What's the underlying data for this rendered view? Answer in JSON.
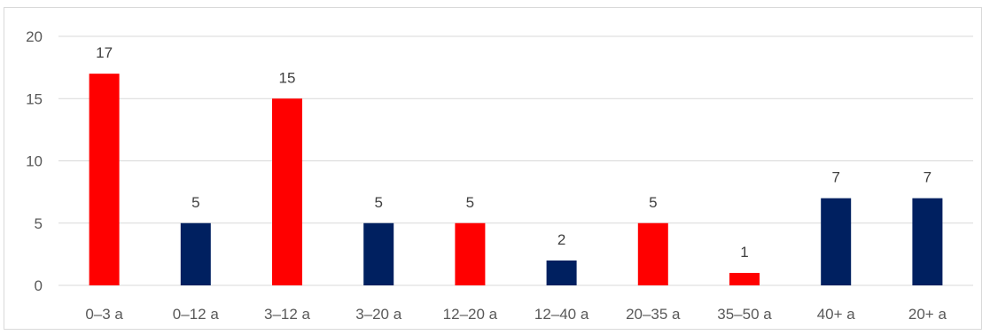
{
  "chart_data": {
    "type": "bar",
    "categories": [
      "0–3 a",
      "0–12 a",
      "3–12 a",
      "3–20 a",
      "12–20 a",
      "12–40 a",
      "20–35 a",
      "35–50 a",
      "40+ a",
      "20+ a"
    ],
    "values": [
      17,
      5,
      15,
      5,
      5,
      2,
      5,
      1,
      7,
      7
    ],
    "bar_colors": [
      "#ff0000",
      "#002060",
      "#ff0000",
      "#002060",
      "#ff0000",
      "#002060",
      "#ff0000",
      "#ff0000",
      "#002060",
      "#002060"
    ],
    "data_labels": [
      "17",
      "5",
      "15",
      "5",
      "5",
      "2",
      "5",
      "1",
      "7",
      "7"
    ],
    "yticks": [
      0,
      5,
      10,
      15,
      20
    ],
    "ylim": [
      0,
      20
    ],
    "grid": true,
    "gridline_color": "#d9d9d9",
    "legend": "none"
  }
}
